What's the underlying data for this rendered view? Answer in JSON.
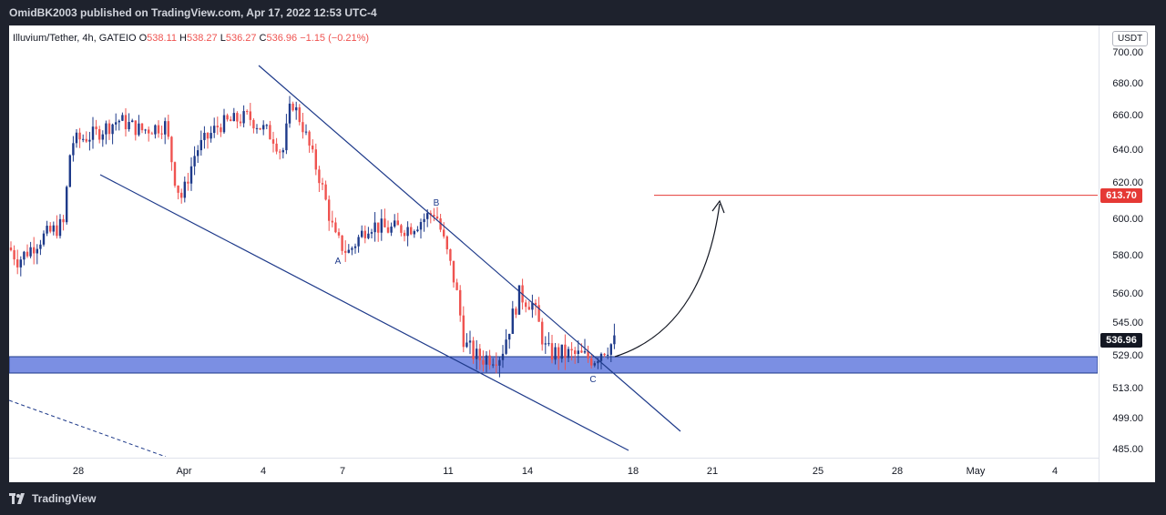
{
  "header": {
    "publish_line": "OmidBK2003 published on TradingView.com, Apr 17, 2022 12:53 UTC-4"
  },
  "footer": {
    "brand": "TradingView"
  },
  "legend": {
    "symbol": "Illuvium/Tether, 4h, GATEIO",
    "o_label": "O",
    "o_value": "538.11",
    "h_label": "H",
    "h_value": "538.27",
    "l_label": "L",
    "l_value": "536.27",
    "c_label": "C",
    "c_value": "536.96",
    "change": "−1.15 (−0.21%)"
  },
  "colors": {
    "up": "#26a69a",
    "down": "#ef5350",
    "wedge": "#1e3a8a",
    "zone": "#7b8fe3",
    "target": "#e53935",
    "last": "#131722"
  },
  "chart_data": {
    "type": "candlestick",
    "title": "",
    "currency": "USDT",
    "y_ticks": [
      "700.00",
      "680.00",
      "660.00",
      "640.00",
      "620.00",
      "600.00",
      "580.00",
      "560.00",
      "545.00",
      "529.00",
      "513.00",
      "499.00",
      "485.00"
    ],
    "x_ticks": [
      "28",
      "Apr",
      "4",
      "7",
      "11",
      "14",
      "18",
      "21",
      "25",
      "28",
      "May",
      "4"
    ],
    "last_price": "536.96",
    "target_price": "613.70",
    "support_zone": [
      521,
      529
    ],
    "wave_labels": [
      "A",
      "B",
      "C"
    ],
    "series": [
      {
        "date": "Mar 25",
        "close": 582
      },
      {
        "date": "Mar 26",
        "close": 588
      },
      {
        "date": "Mar 27",
        "close": 595
      },
      {
        "date": "Mar 28",
        "close": 640
      },
      {
        "date": "Mar 29",
        "close": 652
      },
      {
        "date": "Mar 30",
        "close": 658
      },
      {
        "date": "Mar 31",
        "close": 648
      },
      {
        "date": "Apr 1",
        "close": 612
      },
      {
        "date": "Apr 2",
        "close": 650
      },
      {
        "date": "Apr 3",
        "close": 655
      },
      {
        "date": "Apr 4",
        "close": 648
      },
      {
        "date": "Apr 5",
        "close": 672
      },
      {
        "date": "Apr 6",
        "close": 622
      },
      {
        "date": "Apr 7",
        "close": 590
      },
      {
        "date": "Apr 8",
        "close": 600
      },
      {
        "date": "Apr 9",
        "close": 596
      },
      {
        "date": "Apr 10",
        "close": 605
      },
      {
        "date": "Apr 11",
        "close": 548
      },
      {
        "date": "Apr 12",
        "close": 532
      },
      {
        "date": "Apr 13",
        "close": 552
      },
      {
        "date": "Apr 14",
        "close": 540
      },
      {
        "date": "Apr 15",
        "close": 531
      },
      {
        "date": "Apr 16",
        "close": 530
      },
      {
        "date": "Apr 17",
        "close": 536.96
      }
    ]
  }
}
